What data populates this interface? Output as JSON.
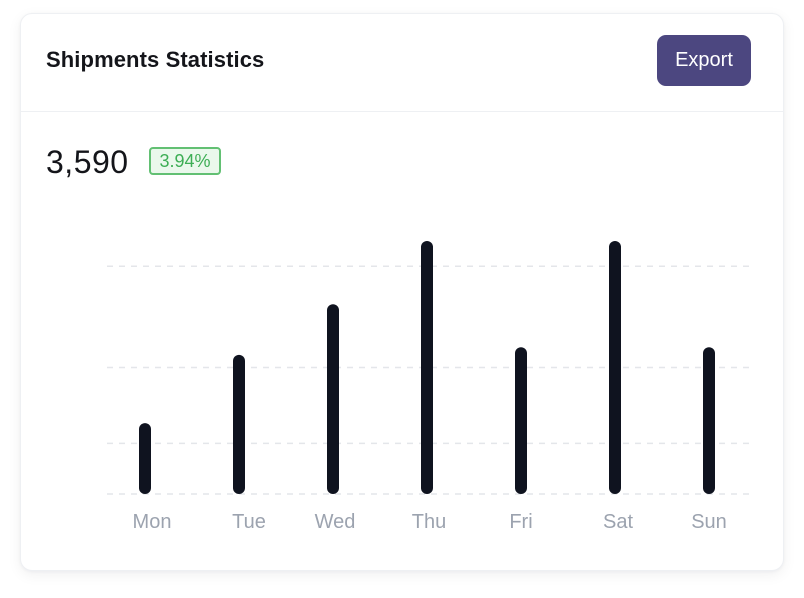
{
  "card": {
    "title": "Shipments Statistics",
    "export_label": "Export",
    "total": "3,590",
    "change": "3.94%"
  },
  "colors": {
    "bar": "#0f131f",
    "button": "#4c4780",
    "badge_text": "#3dae55",
    "badge_bg": "#eaf8ec",
    "grid": "#e4e6ea",
    "axis_label": "#9ca3af"
  },
  "chart_data": {
    "type": "bar",
    "categories": [
      "Mon",
      "Tue",
      "Wed",
      "Thu",
      "Fri",
      "Sat",
      "Sun"
    ],
    "values": [
      28,
      55,
      75,
      100,
      58,
      100,
      58
    ],
    "ylim": [
      0,
      100
    ],
    "gridlines": [
      0,
      20,
      50,
      90
    ],
    "grid": true,
    "xlabel": "",
    "ylabel": ""
  }
}
